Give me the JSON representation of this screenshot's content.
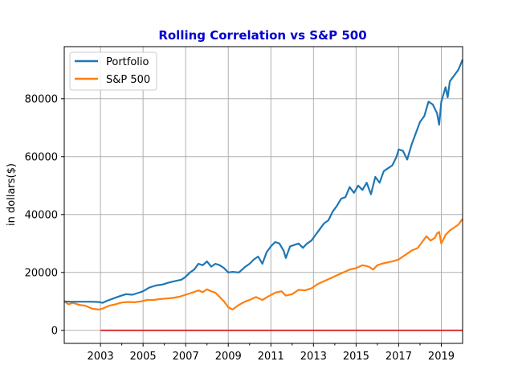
{
  "chart_data": {
    "type": "line",
    "title": "Rolling Correlation vs S&P 500",
    "title_color": "#0000cc",
    "xlabel": "",
    "ylabel": "in dollars($)",
    "xlim": [
      2001.3,
      2020.0
    ],
    "ylim": [
      -4500,
      98000
    ],
    "x_ticks": [
      2003,
      2005,
      2007,
      2009,
      2011,
      2013,
      2015,
      2017,
      2019
    ],
    "x_tick_labels": [
      "2003",
      "2005",
      "2007",
      "2009",
      "2011",
      "2013",
      "2015",
      "2017",
      "2019"
    ],
    "x_minor_ticks": [
      2004,
      2006,
      2008,
      2010,
      2012,
      2014,
      2016,
      2018
    ],
    "y_ticks": [
      0,
      20000,
      40000,
      60000,
      80000
    ],
    "y_tick_labels": [
      "0",
      "20000",
      "40000",
      "60000",
      "80000"
    ],
    "grid": true,
    "legend_position": "top-left",
    "series": [
      {
        "name": "Portfolio",
        "color": "#1f77b4",
        "x": [
          2001.3,
          2001.6,
          2002.0,
          2002.5,
          2002.9,
          2003.1,
          2003.3,
          2003.6,
          2003.9,
          2004.2,
          2004.5,
          2004.8,
          2005.0,
          2005.3,
          2005.6,
          2005.9,
          2006.2,
          2006.5,
          2006.8,
          2007.0,
          2007.2,
          2007.4,
          2007.6,
          2007.8,
          2008.0,
          2008.2,
          2008.4,
          2008.6,
          2008.8,
          2009.0,
          2009.2,
          2009.5,
          2009.8,
          2010.0,
          2010.2,
          2010.4,
          2010.6,
          2010.8,
          2011.0,
          2011.2,
          2011.4,
          2011.6,
          2011.7,
          2011.9,
          2012.1,
          2012.3,
          2012.5,
          2012.7,
          2012.9,
          2013.1,
          2013.3,
          2013.5,
          2013.7,
          2013.9,
          2014.1,
          2014.3,
          2014.5,
          2014.7,
          2014.9,
          2015.1,
          2015.3,
          2015.5,
          2015.7,
          2015.9,
          2016.1,
          2016.3,
          2016.5,
          2016.7,
          2016.9,
          2017.0,
          2017.2,
          2017.4,
          2017.6,
          2017.8,
          2018.0,
          2018.2,
          2018.4,
          2018.6,
          2018.8,
          2018.9,
          2019.0,
          2019.2,
          2019.3,
          2019.4,
          2019.6,
          2019.8,
          2020.0
        ],
        "values": [
          10000,
          9900,
          9900,
          9900,
          9800,
          9500,
          10200,
          11000,
          11800,
          12500,
          12300,
          13000,
          13500,
          14800,
          15500,
          15800,
          16500,
          17000,
          17500,
          18500,
          20000,
          21000,
          23000,
          22500,
          23800,
          22000,
          23000,
          22500,
          21500,
          20000,
          20200,
          20000,
          22000,
          23000,
          24500,
          25500,
          23000,
          27000,
          29000,
          30500,
          30000,
          27500,
          25000,
          29000,
          29500,
          30000,
          28500,
          30000,
          31000,
          33000,
          35000,
          37000,
          38000,
          41000,
          43000,
          45500,
          46000,
          49500,
          47500,
          50000,
          48500,
          51000,
          47000,
          53000,
          51000,
          55000,
          56000,
          57000,
          60000,
          62500,
          62000,
          59000,
          64000,
          68000,
          72000,
          74000,
          79000,
          78000,
          75000,
          71000,
          79000,
          84000,
          80500,
          86000,
          88000,
          90000,
          93500
        ]
      },
      {
        "name": "S&P 500",
        "color": "#ff7f0e",
        "x": [
          2001.3,
          2001.5,
          2001.7,
          2002.0,
          2002.3,
          2002.6,
          2002.9,
          2003.1,
          2003.4,
          2003.7,
          2004.0,
          2004.3,
          2004.6,
          2004.9,
          2005.2,
          2005.5,
          2005.8,
          2006.1,
          2006.4,
          2006.7,
          2007.0,
          2007.3,
          2007.6,
          2007.8,
          2008.0,
          2008.2,
          2008.4,
          2008.6,
          2008.8,
          2009.0,
          2009.2,
          2009.5,
          2009.8,
          2010.0,
          2010.3,
          2010.6,
          2010.9,
          2011.2,
          2011.5,
          2011.7,
          2012.0,
          2012.3,
          2012.6,
          2012.9,
          2013.2,
          2013.5,
          2013.8,
          2014.1,
          2014.4,
          2014.7,
          2015.0,
          2015.3,
          2015.6,
          2015.8,
          2016.0,
          2016.2,
          2016.5,
          2016.8,
          2017.0,
          2017.3,
          2017.6,
          2017.9,
          2018.1,
          2018.3,
          2018.5,
          2018.7,
          2018.8,
          2018.9,
          2019.0,
          2019.2,
          2019.4,
          2019.6,
          2019.8,
          2020.0
        ],
        "values": [
          10000,
          9000,
          9500,
          8800,
          8500,
          7500,
          7200,
          7500,
          8500,
          9000,
          9600,
          9800,
          9700,
          10000,
          10500,
          10500,
          10800,
          11000,
          11200,
          11600,
          12300,
          13000,
          13800,
          13200,
          14200,
          13500,
          13000,
          11500,
          10000,
          8000,
          7200,
          8800,
          10000,
          10500,
          11500,
          10500,
          11800,
          13000,
          13500,
          12000,
          12500,
          14000,
          13800,
          14500,
          16000,
          17000,
          18000,
          19000,
          20000,
          21000,
          21500,
          22500,
          22000,
          21000,
          22500,
          23000,
          23500,
          24000,
          24500,
          26000,
          27500,
          28500,
          30500,
          32500,
          31000,
          32000,
          33500,
          34000,
          30000,
          33000,
          34500,
          35500,
          36500,
          38500
        ]
      },
      {
        "name": "",
        "color": "#d62728",
        "x": [
          2003.0,
          2020.0
        ],
        "values": [
          0,
          0
        ]
      }
    ]
  }
}
